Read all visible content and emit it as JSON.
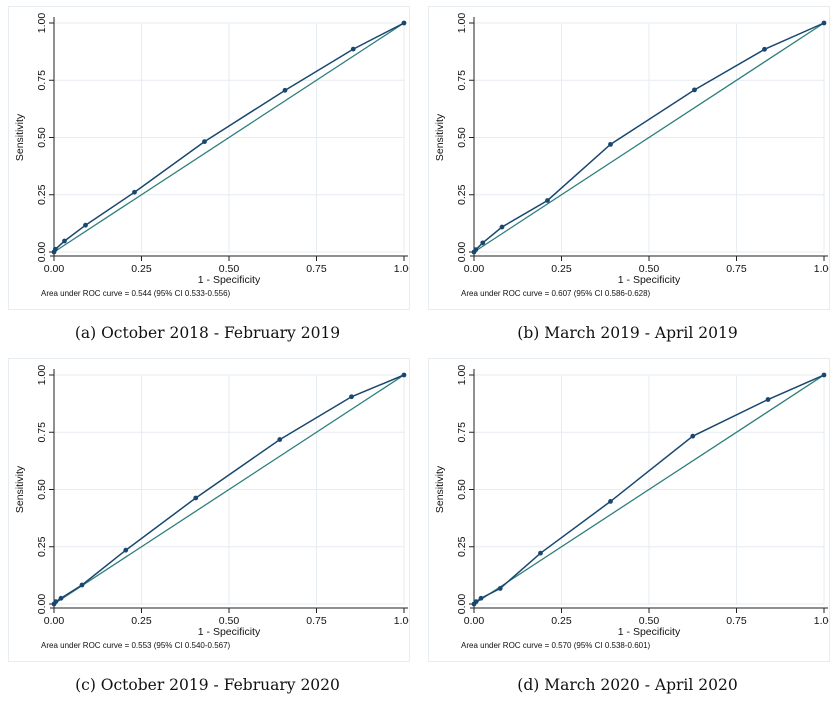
{
  "chart_data": [
    {
      "type": "line",
      "caption": "(a) October 2018 - February 2019",
      "xlabel": "1 - Specificity",
      "ylabel": "Sensitivity",
      "xlim": [
        0,
        1
      ],
      "ylim": [
        0,
        1
      ],
      "xticks": [
        "0.00",
        "0.25",
        "0.50",
        "0.75",
        "1.00"
      ],
      "yticks": [
        "0.00",
        "0.25",
        "0.50",
        "0.75",
        "1.00"
      ],
      "grid": true,
      "reference_line": [
        [
          0,
          0
        ],
        [
          1,
          1
        ]
      ],
      "note": "Area under ROC curve = 0.544 (95% CI 0.533-0.556)",
      "series": [
        {
          "x": [
            0,
            0.004,
            0.03,
            0.09,
            0.23,
            0.43,
            0.66,
            0.855,
            1.0
          ],
          "y": [
            0,
            0.012,
            0.048,
            0.117,
            0.261,
            0.482,
            0.706,
            0.886,
            1.0
          ]
        }
      ]
    },
    {
      "type": "line",
      "caption": "(b) March 2019 - April 2019",
      "xlabel": "1 - Specificity",
      "ylabel": "Sensitivity",
      "xlim": [
        0,
        1
      ],
      "ylim": [
        0,
        1
      ],
      "xticks": [
        "0.00",
        "0.25",
        "0.50",
        "0.75",
        "1.00"
      ],
      "yticks": [
        "0.00",
        "0.25",
        "0.50",
        "0.75",
        "1.00"
      ],
      "grid": true,
      "reference_line": [
        [
          0,
          0
        ],
        [
          1,
          1
        ]
      ],
      "note": "Area under ROC curve = 0.607 (95% CI 0.586-0.628)",
      "series": [
        {
          "x": [
            0,
            0.005,
            0.025,
            0.08,
            0.21,
            0.39,
            0.63,
            0.83,
            1.0
          ],
          "y": [
            0,
            0.01,
            0.04,
            0.109,
            0.225,
            0.47,
            0.708,
            0.885,
            1.0
          ]
        }
      ]
    },
    {
      "type": "line",
      "caption": "(c) October 2019 - February 2020",
      "xlabel": "1 - Specificity",
      "ylabel": "Sensitivity",
      "xlim": [
        0,
        1
      ],
      "ylim": [
        0,
        1
      ],
      "xticks": [
        "0.00",
        "0.25",
        "0.50",
        "0.75",
        "1.00"
      ],
      "yticks": [
        "0.00",
        "0.25",
        "0.50",
        "0.75",
        "1.00"
      ],
      "grid": true,
      "reference_line": [
        [
          0,
          0
        ],
        [
          1,
          1
        ]
      ],
      "note": "Area under ROC curve = 0.553 (95% CI 0.540-0.567)",
      "series": [
        {
          "x": [
            0,
            0.005,
            0.02,
            0.08,
            0.205,
            0.405,
            0.645,
            0.85,
            1.0
          ],
          "y": [
            0,
            0.01,
            0.025,
            0.083,
            0.235,
            0.463,
            0.718,
            0.905,
            1.0
          ]
        }
      ]
    },
    {
      "type": "line",
      "caption": "(d) March 2020 - April 2020",
      "xlabel": "1 - Specificity",
      "ylabel": "Sensitivity",
      "xlim": [
        0,
        1
      ],
      "ylim": [
        0,
        1
      ],
      "xticks": [
        "0.00",
        "0.25",
        "0.50",
        "0.75",
        "1.00"
      ],
      "yticks": [
        "0.00",
        "0.25",
        "0.50",
        "0.75",
        "1.00"
      ],
      "grid": true,
      "reference_line": [
        [
          0,
          0
        ],
        [
          1,
          1
        ]
      ],
      "note": "Area under ROC curve = 0.570 (95% CI 0.538-0.601)",
      "series": [
        {
          "x": [
            0,
            0.006,
            0.02,
            0.075,
            0.19,
            0.39,
            0.625,
            0.84,
            1.0
          ],
          "y": [
            0,
            0.01,
            0.025,
            0.068,
            0.222,
            0.448,
            0.733,
            0.893,
            1.0
          ]
        }
      ]
    }
  ],
  "colors": {
    "curve": "#1a476f",
    "reference": "#2d7f7a",
    "grid": "#e6ecf0",
    "axis": "#222222",
    "text": "#111111"
  }
}
